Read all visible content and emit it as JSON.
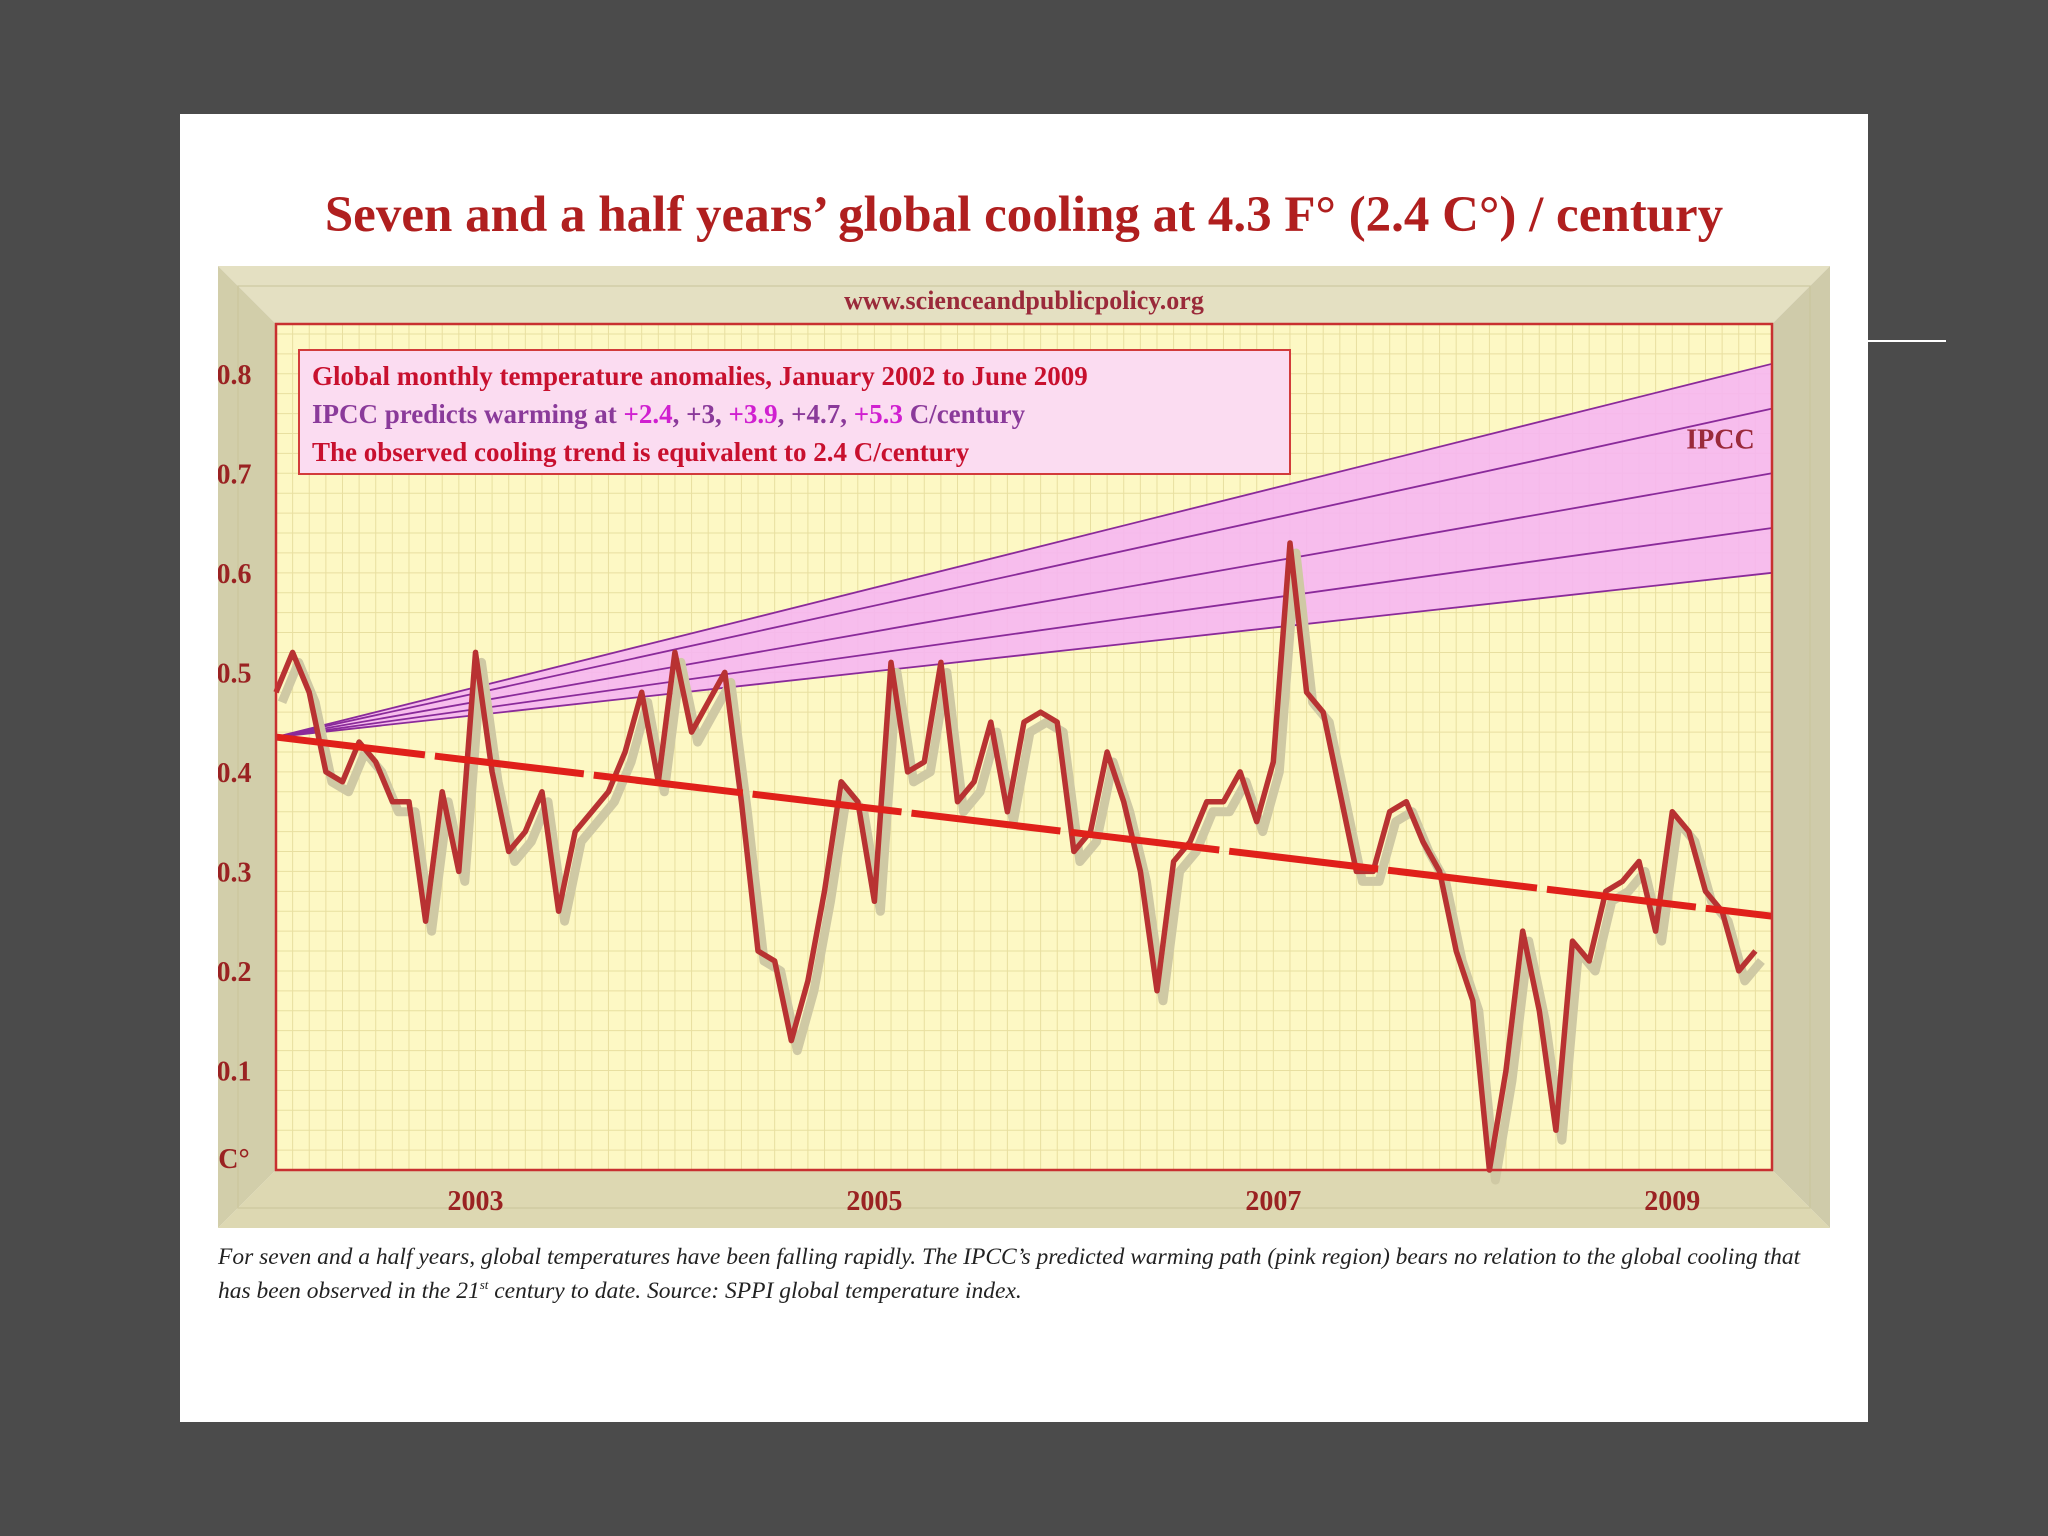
{
  "title": "Seven and a half years’ global cooling at 4.3 F° (2.4 C°) / century",
  "website": "www.scienceandpublicpolicy.org",
  "legend_box": {
    "line1": "Global monthly temperature anomalies, January 2002 to June 2009",
    "line2_prefix": "IPCC predicts warming at ",
    "rate_a": "+2.4",
    "sep1": ", ",
    "rate_b": "+3",
    "sep2": ", ",
    "rate_c": "+3.9",
    "sep3": ", ",
    "rate_d": "+4.7",
    "sep4": ", ",
    "rate_e": "+5.3",
    "line2_suffix": " C/century",
    "line3": "The observed cooling trend is equivalent to 2.4 C/century"
  },
  "ipcc_label": "IPCC",
  "caption": {
    "part1": "For seven and a half years, global temperatures have been falling rapidly. The IPCC’s predicted warming path (pink region) bears no relation to the global cooling that has been observed in the 21",
    "sup": "st",
    "part2": " century to date. Source: SPPI global temperature index."
  },
  "colors": {
    "background": "#4b4b4b",
    "plot_bg": "#fdf8c4",
    "frame": "#ddd8a8",
    "anomaly_line": "#b83232",
    "trend_line": "#e0201a",
    "ipcc_fill": "#f6b6f2",
    "ipcc_lines": "#8a2a9a"
  },
  "chart_data": {
    "type": "line",
    "x_start": 2002.0,
    "x_end": 2009.5,
    "ylim": [
      0,
      0.85
    ],
    "yticks": [
      0.1,
      0.2,
      0.3,
      0.4,
      0.5,
      0.6,
      0.7,
      0.8
    ],
    "ytick_labels": [
      "0.1",
      "0.2",
      "0.3",
      "0.4",
      "0.5",
      "0.6",
      "0.7",
      "0.8"
    ],
    "y_unit_label": "C°",
    "xticks": [
      2003,
      2005,
      2007,
      2009
    ],
    "xtick_labels": [
      "2003",
      "2005",
      "2007",
      "2009"
    ],
    "anomaly_series": [
      0.48,
      0.52,
      0.48,
      0.4,
      0.39,
      0.43,
      0.41,
      0.37,
      0.37,
      0.25,
      0.38,
      0.3,
      0.52,
      0.4,
      0.32,
      0.34,
      0.38,
      0.26,
      0.34,
      0.36,
      0.38,
      0.42,
      0.48,
      0.39,
      0.52,
      0.44,
      0.47,
      0.5,
      0.37,
      0.22,
      0.21,
      0.13,
      0.19,
      0.28,
      0.39,
      0.37,
      0.27,
      0.51,
      0.4,
      0.41,
      0.51,
      0.37,
      0.39,
      0.45,
      0.36,
      0.45,
      0.46,
      0.45,
      0.32,
      0.34,
      0.42,
      0.37,
      0.3,
      0.18,
      0.31,
      0.33,
      0.37,
      0.37,
      0.4,
      0.35,
      0.41,
      0.63,
      0.48,
      0.46,
      0.38,
      0.3,
      0.3,
      0.36,
      0.37,
      0.33,
      0.3,
      0.22,
      0.17,
      0.0,
      0.1,
      0.24,
      0.16,
      0.04,
      0.23,
      0.21,
      0.28,
      0.29,
      0.31,
      0.24,
      0.36,
      0.34,
      0.28,
      0.26,
      0.2,
      0.22
    ],
    "trend": {
      "start": 0.435,
      "end": 0.255,
      "rate": "2.4 C/century"
    },
    "ipcc_band": {
      "origin": 0.435,
      "end_values": [
        0.6,
        0.645,
        0.7,
        0.765,
        0.81
      ],
      "rates": [
        "+2.4",
        "+3",
        "+3.9",
        "+4.7",
        "+5.3"
      ]
    }
  }
}
